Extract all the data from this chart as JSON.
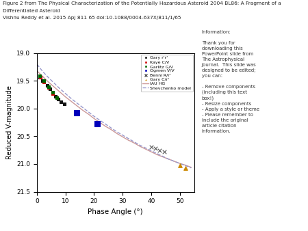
{
  "title_line1": "Figure 2 from The Physical Characterization of the Potentially Hazardous Asteroid 2004 BL86: A Fragment of a",
  "title_line2": "Differentiated Asteroid",
  "title_line3": "Vishnu Reddy et al. 2015 ApJ 811 65 doi:10.1088/0004-637X/811/1/65",
  "xlabel": "Phase Angle (°)",
  "ylabel": "Reduced V-magnitude",
  "xlim": [
    0,
    55
  ],
  "ylim": [
    21.5,
    19.0
  ],
  "yticks": [
    19.0,
    19.5,
    20.0,
    20.5,
    21.0,
    21.5
  ],
  "xticks": [
    0,
    10,
    20,
    30,
    40,
    50
  ],
  "gary_riv": {
    "x": [
      1.0,
      2.0,
      3.5,
      4.5,
      5.5,
      6.5,
      7.5,
      8.5,
      9.5
    ],
    "y": [
      19.44,
      19.5,
      19.58,
      19.65,
      19.72,
      19.78,
      19.83,
      19.88,
      19.92
    ],
    "color": "#111111",
    "marker": "s",
    "size": 3
  },
  "kaye_civ": {
    "x": [
      1.2,
      2.5,
      4.0,
      5.5,
      7.0
    ],
    "y": [
      19.43,
      19.52,
      19.62,
      19.73,
      19.81
    ],
    "color": "#cc0000",
    "marker": "s",
    "size": 3
  },
  "garlitz_gv": {
    "x": [
      1.0,
      2.5,
      4.0,
      5.5,
      7.0
    ],
    "y": [
      19.41,
      19.5,
      19.61,
      19.71,
      19.8
    ],
    "color": "#006600",
    "marker": "s",
    "size": 3
  },
  "ogmen_viv": {
    "x": [
      14.0,
      21.0
    ],
    "y": [
      20.07,
      20.27
    ],
    "color": "#0000bb",
    "marker": "s",
    "size": 6
  },
  "benni_riv": {
    "x": [
      40.0,
      41.5,
      43.0,
      44.5
    ],
    "y": [
      20.69,
      20.72,
      20.75,
      20.78
    ],
    "color": "#555555",
    "marker": "x",
    "size": 4
  },
  "gary_civ": {
    "x": [
      50.0,
      52.0
    ],
    "y": [
      21.03,
      21.08
    ],
    "color": "#cc8800",
    "marker": "^",
    "size": 4
  },
  "iau_hg_x": [
    0,
    2,
    4,
    6,
    8,
    10,
    12,
    14,
    16,
    18,
    20,
    22,
    24,
    26,
    28,
    30,
    32,
    34,
    36,
    38,
    40,
    42,
    44,
    46,
    48,
    50,
    52,
    54
  ],
  "iau_hg_y": [
    19.32,
    19.42,
    19.52,
    19.61,
    19.7,
    19.79,
    19.87,
    19.95,
    20.03,
    20.1,
    20.18,
    20.25,
    20.32,
    20.38,
    20.45,
    20.51,
    20.57,
    20.62,
    20.68,
    20.73,
    20.78,
    20.83,
    20.87,
    20.91,
    20.95,
    20.99,
    21.02,
    21.06
  ],
  "shevchenko_x": [
    0,
    2,
    4,
    6,
    8,
    10,
    12,
    14,
    16,
    18,
    20,
    22,
    24,
    26,
    28,
    30,
    32,
    34,
    36,
    38,
    40,
    42,
    44,
    46,
    48,
    50,
    52,
    54
  ],
  "shevchenko_y": [
    19.2,
    19.33,
    19.44,
    19.54,
    19.64,
    19.73,
    19.82,
    19.9,
    19.98,
    20.06,
    20.14,
    20.21,
    20.28,
    20.35,
    20.42,
    20.48,
    20.54,
    20.6,
    20.66,
    20.71,
    20.76,
    20.81,
    20.86,
    20.91,
    20.95,
    20.99,
    21.03,
    21.07
  ],
  "iau_color": "#cc9999",
  "shev_color": "#9999cc",
  "info_text": "Information:\n\nThank you for\ndownloading this\nPowerPoint slide from\nThe Astrophysical\nJournal.  This slide was\ndesigned to be edited;\nyou can:\n\n- Remove components\n(including this text\nbox!)\n- Resize components\n- Apply a style or theme\n- Please remember to\ninclude the original\narticle citation\ninformation.",
  "bg_color": "#ffffff"
}
